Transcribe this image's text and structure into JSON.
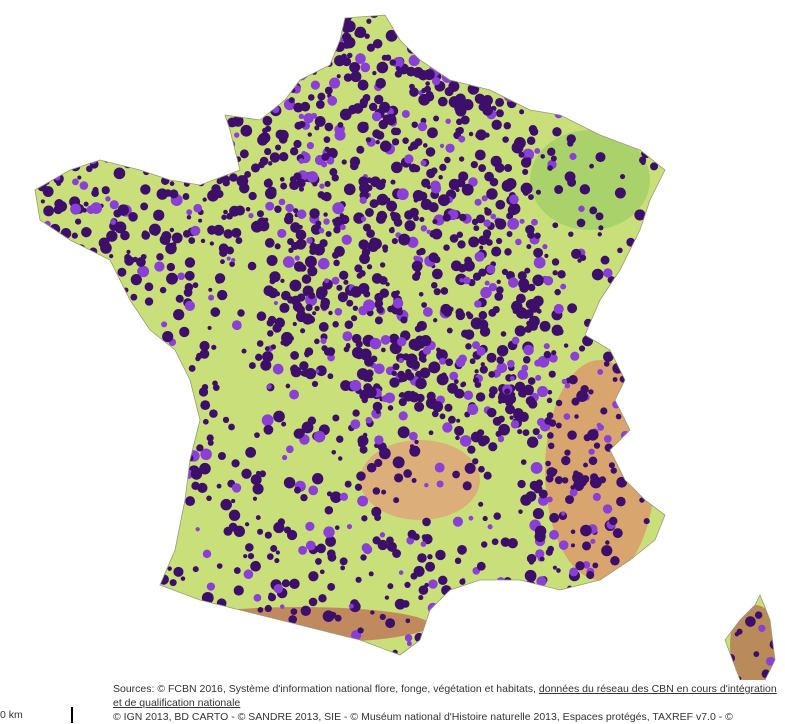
{
  "scale_label": "0 km",
  "sources": {
    "text": "Sources: © FCBN 2016, Système d'information national flore, fonge, végétation et habitats, ",
    "link": "données du réseau des CBN en cours d'intégration et de qualification nationale",
    "credits": "© IGN 2013, BD CARTO - © SANDRE 2013, SIE - © Muséum national d'Histoire naturelle 2013, Espaces protégés, TAXREF v7.0 - ©"
  }
}
